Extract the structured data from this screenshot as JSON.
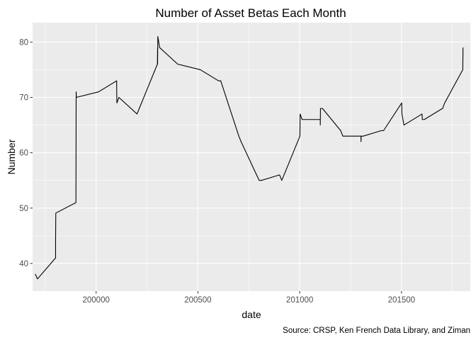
{
  "chart_data": {
    "type": "line",
    "title": "Number of Asset Betas Each Month",
    "xlabel": "date",
    "ylabel": "Number",
    "caption": "Source: CRSP, Ken French Data Library, and Ziman",
    "xlim": [
      199688,
      201838
    ],
    "ylim": [
      35,
      83.5
    ],
    "x_ticks": [
      200000,
      200500,
      201000,
      201500
    ],
    "x_tick_labels": [
      "200000",
      "200500",
      "201000",
      "201500"
    ],
    "y_ticks": [
      40,
      50,
      60,
      70,
      80
    ],
    "y_tick_labels": [
      "40",
      "50",
      "60",
      "70",
      "80"
    ],
    "grid": true,
    "legend": "none",
    "colors": {
      "panel": "#ebebeb",
      "grid": "#ffffff",
      "line": "#000000"
    },
    "series": [
      {
        "x": [
          199701,
          199712,
          199801,
          199801,
          199802,
          199901,
          199902,
          199903,
          200012,
          200101,
          200101,
          200102,
          200112,
          200201,
          200212,
          200301,
          200302,
          200302,
          200303,
          200312,
          200401,
          200512,
          200601,
          200612,
          200701,
          200712,
          200801,
          200812,
          200901,
          200912,
          201001,
          201001,
          201002,
          201012,
          201101,
          201101,
          201102,
          201112,
          201201,
          201212,
          201301,
          201301,
          201302,
          201312,
          201401,
          201412,
          201501,
          201502,
          201512,
          201601,
          201602,
          201612,
          201701,
          201702,
          201712,
          201801,
          201802
        ],
        "y": [
          38.1,
          37.2,
          41,
          44,
          49.1,
          51,
          71,
          70,
          71,
          73,
          72,
          69,
          70,
          67,
          68,
          76,
          79,
          76,
          81,
          79,
          76,
          75,
          73,
          73,
          63,
          62,
          55,
          55,
          56,
          55,
          63,
          63,
          67,
          66,
          66,
          65,
          68,
          68,
          64,
          63,
          63,
          62,
          63,
          63,
          64,
          64,
          69,
          67,
          65,
          67,
          66,
          66,
          68,
          68,
          69,
          75,
          79
        ]
      }
    ]
  }
}
